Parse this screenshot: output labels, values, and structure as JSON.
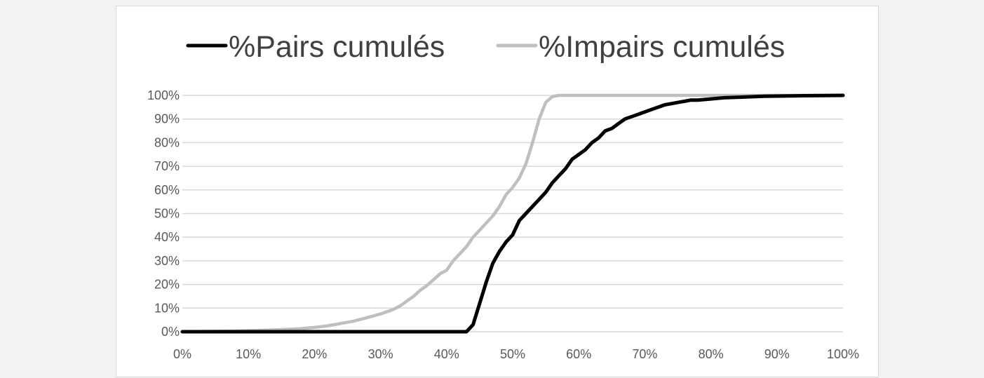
{
  "chart_data": {
    "type": "line",
    "title": "",
    "xlabel": "",
    "ylabel": "",
    "xlim": [
      0,
      100
    ],
    "ylim": [
      0,
      100
    ],
    "x_ticks": [
      "0%",
      "10%",
      "20%",
      "30%",
      "40%",
      "50%",
      "60%",
      "70%",
      "80%",
      "90%",
      "100%"
    ],
    "y_ticks": [
      "0%",
      "10%",
      "20%",
      "30%",
      "40%",
      "50%",
      "60%",
      "70%",
      "80%",
      "90%",
      "100%"
    ],
    "grid": "horizontal",
    "legend": "top",
    "series": [
      {
        "name": "%Pairs cumulés",
        "color": "#000000",
        "points": [
          [
            0,
            0
          ],
          [
            43,
            0
          ],
          [
            44,
            3
          ],
          [
            45,
            12
          ],
          [
            46,
            21
          ],
          [
            47,
            29
          ],
          [
            48,
            34
          ],
          [
            49,
            38
          ],
          [
            50,
            41
          ],
          [
            51,
            47
          ],
          [
            52,
            50
          ],
          [
            53,
            53
          ],
          [
            54,
            56
          ],
          [
            55,
            59
          ],
          [
            56,
            63
          ],
          [
            57,
            66
          ],
          [
            58,
            69
          ],
          [
            59,
            73
          ],
          [
            60,
            75
          ],
          [
            61,
            77
          ],
          [
            62,
            80
          ],
          [
            63,
            82
          ],
          [
            64,
            85
          ],
          [
            65,
            86
          ],
          [
            66,
            88
          ],
          [
            67,
            90
          ],
          [
            68,
            91
          ],
          [
            69,
            92
          ],
          [
            70,
            93
          ],
          [
            71,
            94
          ],
          [
            72,
            95
          ],
          [
            73,
            96
          ],
          [
            74,
            96.5
          ],
          [
            75,
            97
          ],
          [
            76,
            97.5
          ],
          [
            77,
            98
          ],
          [
            78,
            98
          ],
          [
            80,
            98.5
          ],
          [
            82,
            99
          ],
          [
            85,
            99.3
          ],
          [
            88,
            99.6
          ],
          [
            92,
            99.8
          ],
          [
            100,
            100
          ]
        ]
      },
      {
        "name": "%Impairs cumulés",
        "color": "#bfbfbf",
        "points": [
          [
            0,
            0
          ],
          [
            8,
            0.3
          ],
          [
            12,
            0.6
          ],
          [
            15,
            0.9
          ],
          [
            18,
            1.3
          ],
          [
            20,
            1.8
          ],
          [
            22,
            2.5
          ],
          [
            24,
            3.5
          ],
          [
            26,
            4.5
          ],
          [
            28,
            6
          ],
          [
            30,
            7.5
          ],
          [
            32,
            9.5
          ],
          [
            33,
            11
          ],
          [
            34,
            13
          ],
          [
            35,
            15
          ],
          [
            36,
            17.5
          ],
          [
            37,
            19.5
          ],
          [
            38,
            22
          ],
          [
            39,
            24.5
          ],
          [
            40,
            26
          ],
          [
            41,
            30
          ],
          [
            42,
            33
          ],
          [
            43,
            36
          ],
          [
            44,
            40
          ],
          [
            45,
            43
          ],
          [
            46,
            46
          ],
          [
            47,
            49
          ],
          [
            48,
            53
          ],
          [
            49,
            58
          ],
          [
            50,
            61
          ],
          [
            51,
            65
          ],
          [
            52,
            71
          ],
          [
            53,
            80
          ],
          [
            54,
            90
          ],
          [
            55,
            97
          ],
          [
            56,
            99.5
          ],
          [
            57,
            100
          ],
          [
            100,
            100
          ]
        ]
      }
    ]
  }
}
